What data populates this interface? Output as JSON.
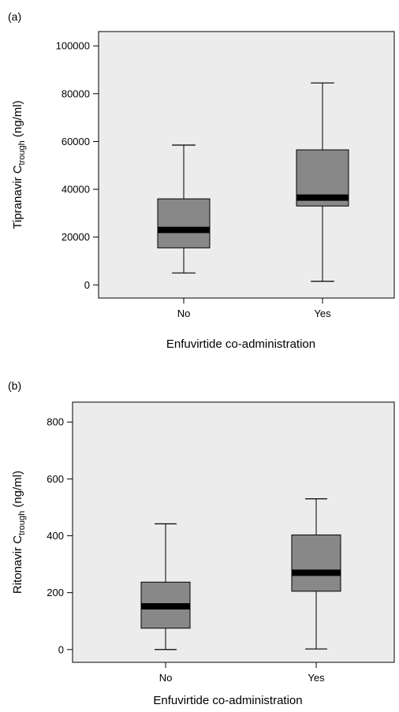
{
  "colors": {
    "panel_bg": "#ececec",
    "box_fill": "#888888",
    "median": "#000000",
    "line": "#000000"
  },
  "chart_data": [
    {
      "panel_label": "(a)",
      "type": "box",
      "xlabel": "Enfuvirtide co-administration",
      "ylabel": {
        "base": "Tipranavir C",
        "sub": "trough",
        "unit": " (ng/ml)"
      },
      "ylim": [
        -5500,
        106000
      ],
      "yticks": [
        0,
        20000,
        40000,
        60000,
        80000,
        100000
      ],
      "yticklabels": [
        "0",
        "20000",
        "40000",
        "60000",
        "80000",
        "100000"
      ],
      "categories": [
        "No",
        "Yes"
      ],
      "boxes": [
        {
          "category": "No",
          "whisker_low": 5000,
          "q1": 15500,
          "median": 23000,
          "q3": 36000,
          "whisker_high": 58500
        },
        {
          "category": "Yes",
          "whisker_low": 1500,
          "q1": 33000,
          "median": 36500,
          "q3": 56500,
          "whisker_high": 84500
        }
      ]
    },
    {
      "panel_label": "(b)",
      "type": "box",
      "xlabel": "Enfuvirtide co-administration",
      "ylabel": {
        "base": "Ritonavir C",
        "sub": "trough",
        "unit": " (ng/ml)"
      },
      "ylim": [
        -45,
        870
      ],
      "yticks": [
        0,
        200,
        400,
        600,
        800
      ],
      "yticklabels": [
        "0",
        "200",
        "400",
        "600",
        "800"
      ],
      "categories": [
        "No",
        "Yes"
      ],
      "boxes": [
        {
          "category": "No",
          "whisker_low": 0,
          "q1": 75,
          "median": 152,
          "q3": 237,
          "whisker_high": 442
        },
        {
          "category": "Yes",
          "whisker_low": 2,
          "q1": 205,
          "median": 270,
          "q3": 403,
          "whisker_high": 530
        }
      ]
    }
  ]
}
